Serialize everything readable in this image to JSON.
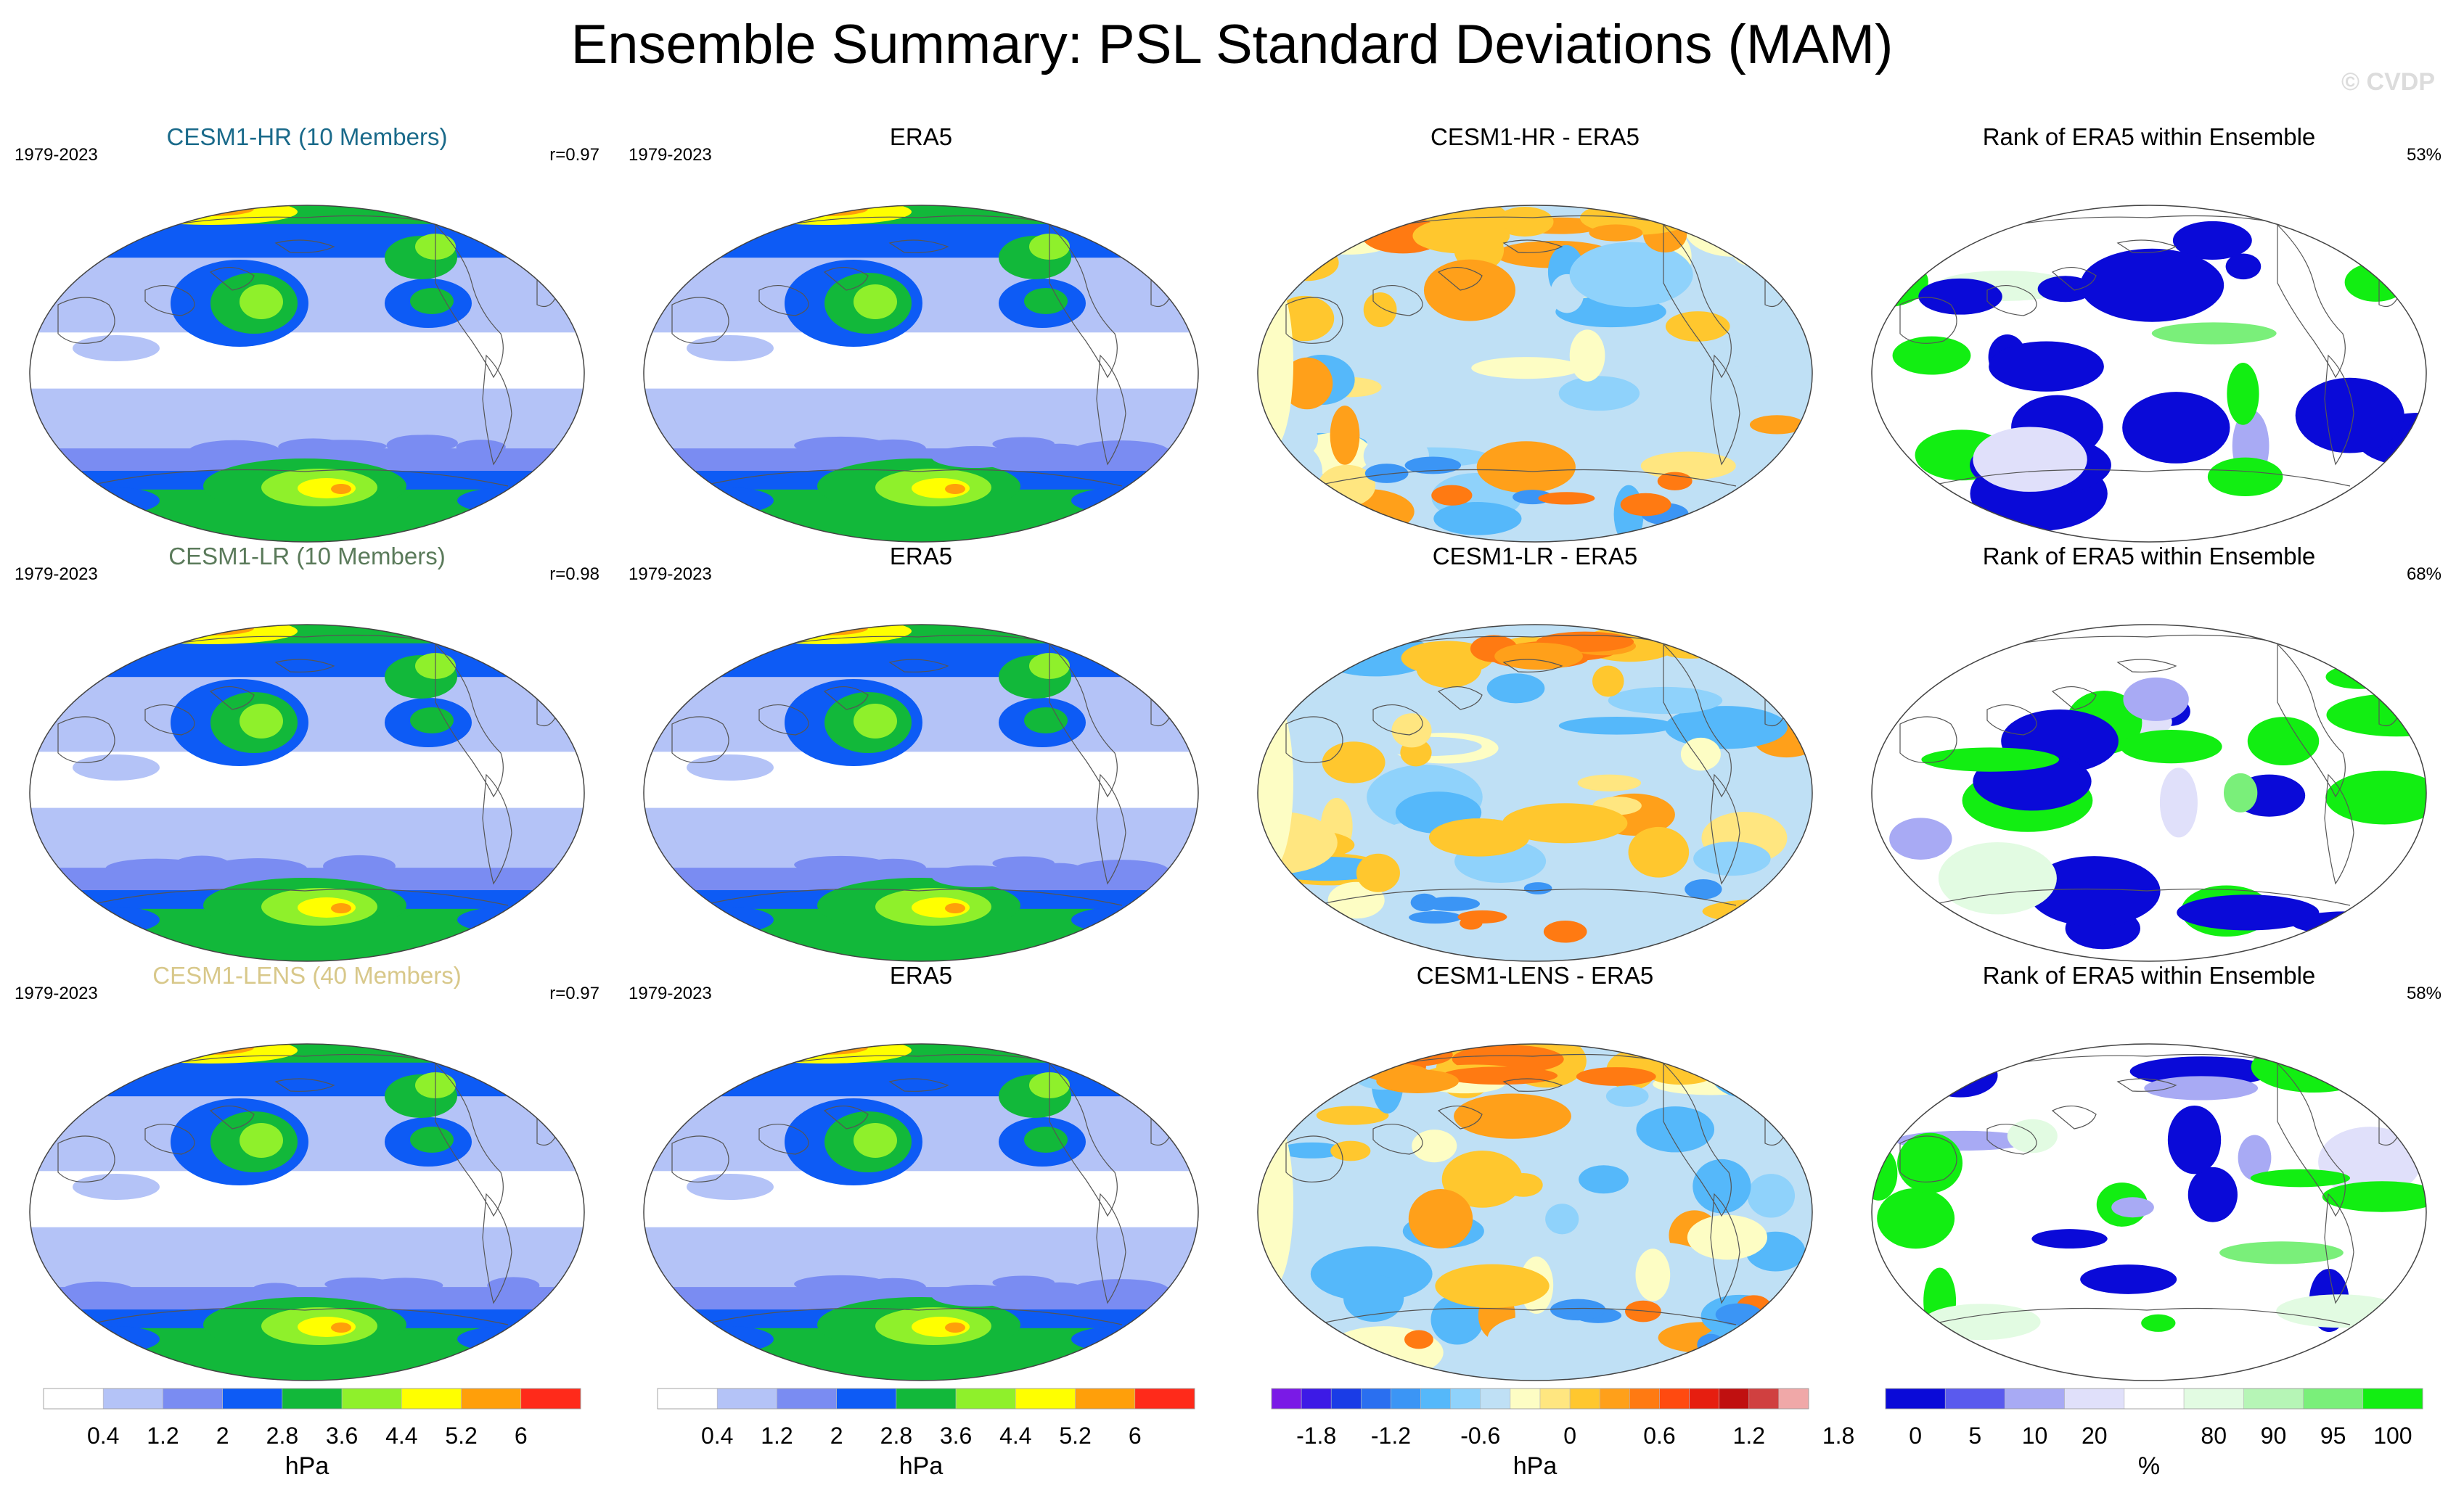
{
  "title": "Ensemble Summary: PSL Standard Deviations (MAM)",
  "watermark": "© CVDP",
  "colors": {
    "std": [
      "#ffffff",
      "#b4c3f7",
      "#7a8cf2",
      "#0d5bf5",
      "#12b83a",
      "#8ff02b",
      "#ffff00",
      "#ff9f0a",
      "#ff2a1a"
    ],
    "diff": [
      "#7a1ae6",
      "#3d1ae6",
      "#1a3ce6",
      "#2a6ff0",
      "#3b95f5",
      "#55b8fa",
      "#8fd2fb",
      "#bfe0f5",
      "#fdfdc4",
      "#ffe680",
      "#ffc72e",
      "#ffa01a",
      "#ff7a12",
      "#ff4a10",
      "#e61e10",
      "#c01010",
      "#d04040",
      "#f0a8a8"
    ],
    "rank": [
      "#0a0ad8",
      "#5a5aee",
      "#a8aaf4",
      "#e0e0fa",
      "#ffffff",
      "#e2fbe2",
      "#b6f5b6",
      "#7aef7a",
      "#12ee12"
    ]
  },
  "rows": [
    {
      "model": {
        "title": "CESM1-HR (10 Members)",
        "title_color": "#1a6a8a",
        "years": "1979-2023",
        "stat": "r=0.97"
      },
      "obs": {
        "title": "ERA5",
        "years": "1979-2023"
      },
      "diff": {
        "title": "CESM1-HR - ERA5"
      },
      "rank": {
        "title": "Rank of ERA5 within Ensemble",
        "stat": "53%"
      }
    },
    {
      "model": {
        "title": "CESM1-LR (10 Members)",
        "title_color": "#5a7a5a",
        "years": "1979-2023",
        "stat": "r=0.98"
      },
      "obs": {
        "title": "ERA5",
        "years": "1979-2023"
      },
      "diff": {
        "title": "CESM1-LR - ERA5"
      },
      "rank": {
        "title": "Rank of ERA5 within Ensemble",
        "stat": "68%"
      }
    },
    {
      "model": {
        "title": "CESM1-LENS (40 Members)",
        "title_color": "#d8c88a",
        "years": "1979-2023",
        "stat": "r=0.97"
      },
      "obs": {
        "title": "ERA5",
        "years": "1979-2023"
      },
      "diff": {
        "title": "CESM1-LENS - ERA5"
      },
      "rank": {
        "title": "Rank of ERA5 within Ensemble",
        "stat": "58%"
      }
    }
  ],
  "colorbars": {
    "model_std": {
      "labels": [
        "0.4",
        "1.2",
        "2",
        "2.8",
        "3.6",
        "4.4",
        "5.2",
        "6"
      ],
      "units": "hPa"
    },
    "obs_std": {
      "labels": [
        "0.4",
        "1.2",
        "2",
        "2.8",
        "3.6",
        "4.4",
        "5.2",
        "6"
      ],
      "units": "hPa"
    },
    "diff": {
      "labels": [
        "-1.8",
        "-1.2",
        "-0.6",
        "0",
        "0.6",
        "1.2",
        "1.8"
      ],
      "units": "hPa"
    },
    "rank": {
      "labels": [
        "0",
        "5",
        "10",
        "20",
        "80",
        "90",
        "95",
        "100"
      ],
      "units": "%"
    }
  },
  "chart_data": [
    {
      "type": "heatmap",
      "title": "CESM1-HR (10 Members)",
      "period": "1979-2023",
      "pattern_correlation": 0.97,
      "units": "hPa",
      "levels": [
        0.4,
        0.8,
        1.2,
        1.6,
        2,
        2.4,
        2.8,
        3.2,
        3.6,
        4,
        4.4,
        4.8,
        5.2,
        5.6,
        6
      ]
    },
    {
      "type": "heatmap",
      "title": "ERA5",
      "period": "1979-2023",
      "units": "hPa"
    },
    {
      "type": "heatmap",
      "title": "CESM1-HR - ERA5",
      "units": "hPa",
      "levels": [
        -1.8,
        -1.6,
        -1.4,
        -1.2,
        -1,
        -0.8,
        -0.6,
        -0.4,
        -0.2,
        0,
        0.2,
        0.4,
        0.6,
        0.8,
        1,
        1.2,
        1.4,
        1.6,
        1.8
      ]
    },
    {
      "type": "heatmap",
      "title": "Rank of ERA5 within Ensemble",
      "units": "%",
      "summary_percent": 53,
      "levels": [
        0,
        5,
        10,
        20,
        80,
        90,
        95,
        100
      ]
    },
    {
      "type": "heatmap",
      "title": "CESM1-LR (10 Members)",
      "period": "1979-2023",
      "pattern_correlation": 0.98,
      "units": "hPa"
    },
    {
      "type": "heatmap",
      "title": "ERA5",
      "period": "1979-2023",
      "units": "hPa"
    },
    {
      "type": "heatmap",
      "title": "CESM1-LR - ERA5",
      "units": "hPa"
    },
    {
      "type": "heatmap",
      "title": "Rank of ERA5 within Ensemble",
      "units": "%",
      "summary_percent": 68
    },
    {
      "type": "heatmap",
      "title": "CESM1-LENS (40 Members)",
      "period": "1979-2023",
      "pattern_correlation": 0.97,
      "units": "hPa"
    },
    {
      "type": "heatmap",
      "title": "ERA5",
      "period": "1979-2023",
      "units": "hPa"
    },
    {
      "type": "heatmap",
      "title": "CESM1-LENS - ERA5",
      "units": "hPa"
    },
    {
      "type": "heatmap",
      "title": "Rank of ERA5 within Ensemble",
      "units": "%",
      "summary_percent": 58
    }
  ]
}
